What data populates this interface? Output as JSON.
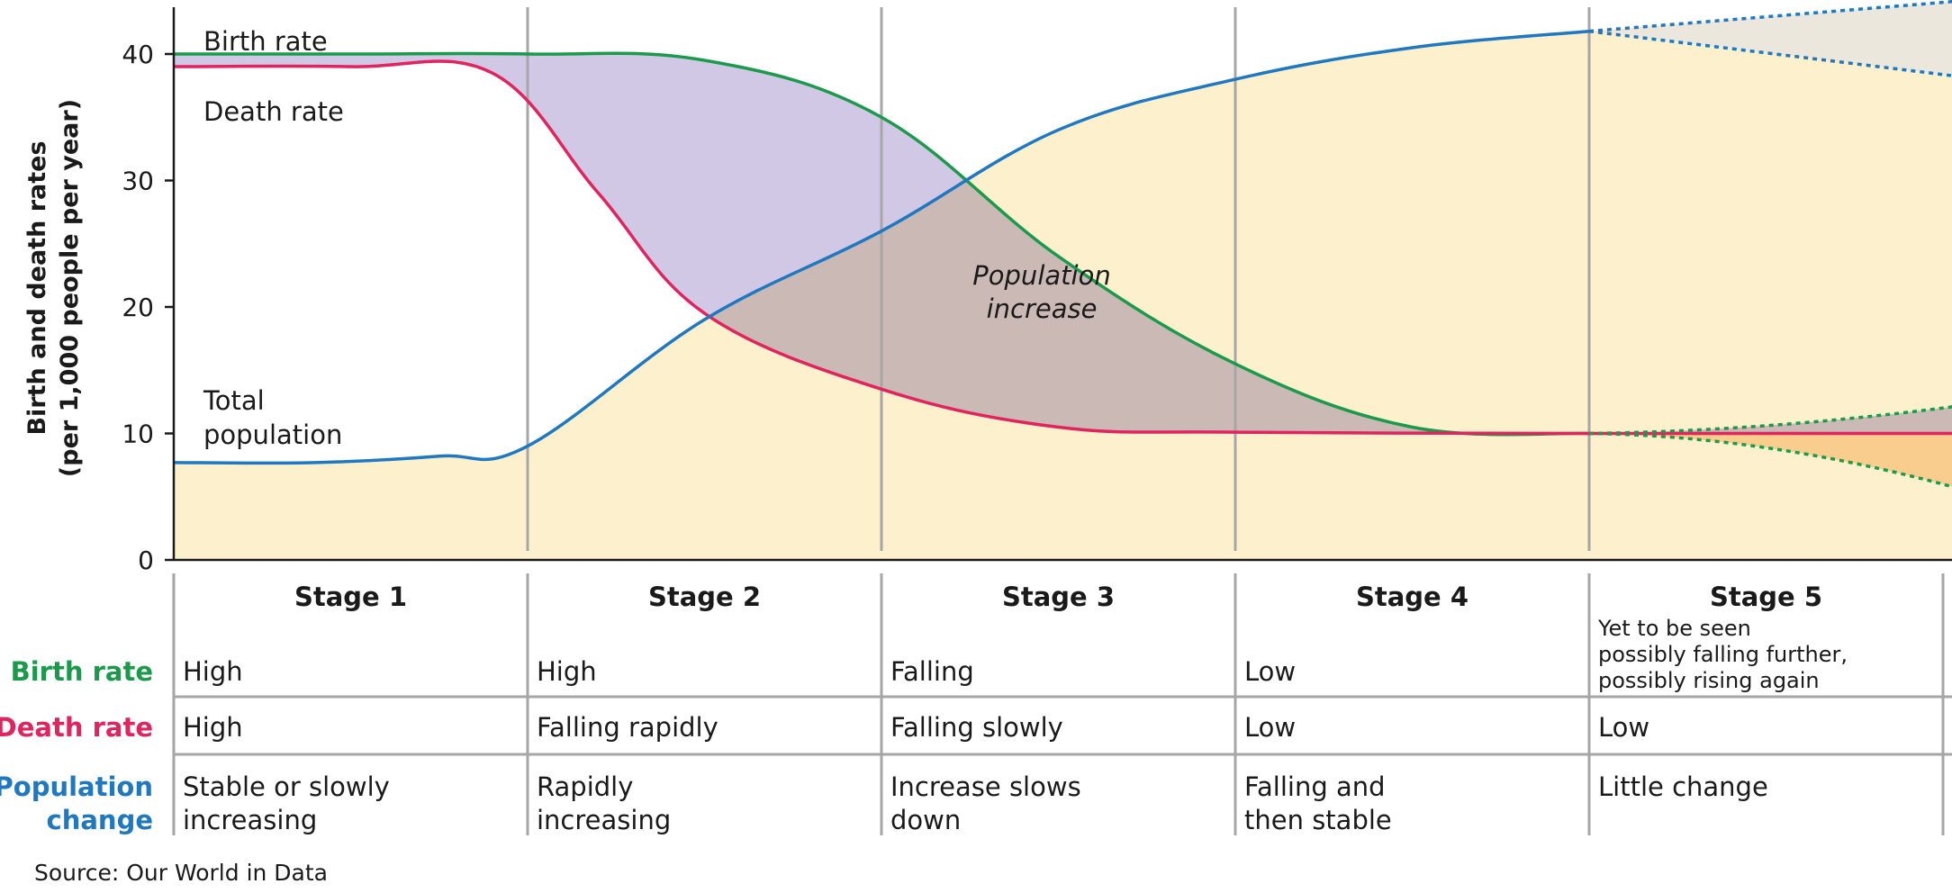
{
  "chart_data": {
    "type": "line",
    "ylabel_line1": "Birth and death rates",
    "ylabel_line2": "(per 1,000 people per year)",
    "ylim": [
      0,
      44
    ],
    "y_ticks": [
      0,
      10,
      20,
      30,
      40
    ],
    "categories": [
      "Stage 1",
      "Stage 2",
      "Stage 3",
      "Stage 4",
      "Stage 5"
    ],
    "series": [
      {
        "name": "Birth rate",
        "color": "#1a9a4a",
        "x": [
          0,
          0.5,
          1.0,
          1.5,
          2.0,
          2.5,
          3.0,
          3.5,
          4.0
        ],
        "values": [
          40,
          40,
          40,
          39.5,
          35,
          24,
          15.5,
          10.5,
          10
        ]
      },
      {
        "name": "Death rate",
        "color": "#e0245e",
        "x": [
          0,
          0.5,
          0.9,
          1.2,
          1.5,
          2.0,
          2.5,
          3.0,
          4.0
        ],
        "values": [
          39,
          39,
          38.5,
          29,
          19.5,
          13.5,
          10.5,
          10.1,
          10
        ]
      },
      {
        "name": "Total population",
        "color": "#1f78c0",
        "x": [
          0,
          0.4,
          0.75,
          1.0,
          1.5,
          2.0,
          2.5,
          3.0,
          3.5,
          4.0
        ],
        "values": [
          7.7,
          7.7,
          8.2,
          9,
          19,
          26,
          34,
          38,
          40.5,
          41.8
        ]
      }
    ],
    "stage5_projection": {
      "total_population_upper": 44.2,
      "total_population_lower": 38.2,
      "birth_rate_upper": 12.2,
      "birth_rate_lower": 5.6,
      "death_rate": 10
    },
    "annotations": {
      "birth_rate_label": "Birth rate",
      "death_rate_label": "Death rate",
      "total_population_line1": "Total",
      "total_population_line2": "population",
      "increase_line1": "Population",
      "increase_line2": "increase"
    },
    "colors": {
      "increase_fill": "#cfc5e5",
      "overlap_fill": "#cbb9b6",
      "population_fill": "#fdf1cd",
      "projection_top_fill": "#ebe7dd",
      "projection_bottom_fill": "#f9cd8e",
      "divider": "#a6a6a6"
    }
  },
  "table": {
    "rows": [
      {
        "label_line1": "Birth rate",
        "label_line2": "",
        "color": "#1a9a4a",
        "cells": [
          [
            "High"
          ],
          [
            "High"
          ],
          [
            "Falling"
          ],
          [
            "Low"
          ],
          [
            "Yet to be seen",
            "possibly falling further,",
            "possibly rising again"
          ]
        ]
      },
      {
        "label_line1": "Death rate",
        "label_line2": "",
        "color": "#e0245e",
        "cells": [
          [
            "High"
          ],
          [
            "Falling rapidly"
          ],
          [
            "Falling slowly"
          ],
          [
            "Low"
          ],
          [
            "Low"
          ]
        ]
      },
      {
        "label_line1": "Population",
        "label_line2": "change",
        "color": "#1f78c0",
        "cells": [
          [
            "Stable or slowly",
            "increasing"
          ],
          [
            "Rapidly",
            "increasing"
          ],
          [
            "Increase slows",
            "down"
          ],
          [
            "Falling and",
            "then stable"
          ],
          [
            "Little change"
          ]
        ]
      }
    ]
  },
  "source": "Source: Our World in Data"
}
